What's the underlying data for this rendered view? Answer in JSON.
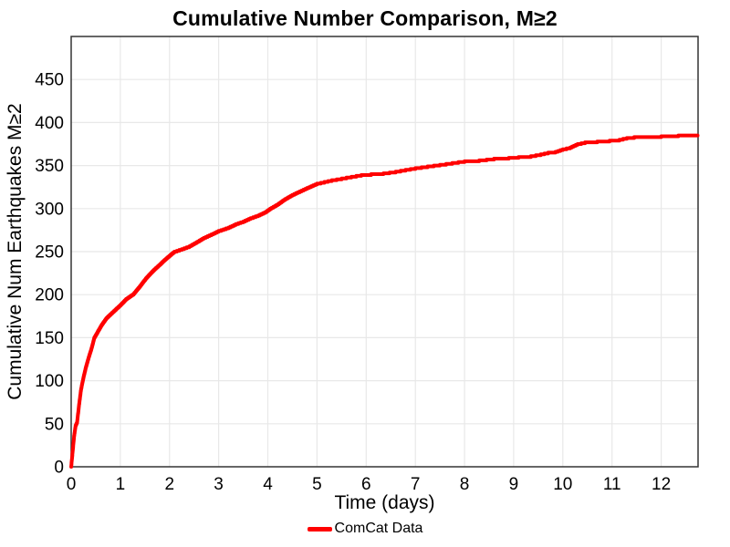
{
  "title": "Cumulative Number Comparison, M≥2",
  "legend": {
    "position": "bottom-center",
    "items": [
      {
        "label": "ComCat Data",
        "color": "#FF0000",
        "marker": "line"
      }
    ]
  },
  "colors": {
    "line": "#FF0000",
    "grid": "#E8E8E8",
    "panel_border": "#333333",
    "background": "#FFFFFF",
    "text": "#000000"
  },
  "chart_data": {
    "type": "line",
    "title": "Cumulative Number Comparison, M≥2",
    "xlabel": "Time (days)",
    "ylabel": "Cumulative Num Earthquakes M≥2",
    "xlim": [
      0,
      12.75
    ],
    "ylim": [
      0,
      500
    ],
    "x_ticks": [
      0,
      1,
      2,
      3,
      4,
      5,
      6,
      7,
      8,
      9,
      10,
      11,
      12
    ],
    "y_ticks": [
      0,
      50,
      100,
      150,
      200,
      250,
      300,
      350,
      400,
      450
    ],
    "grid": true,
    "line_style": "cumulative-step",
    "line_width": 4,
    "series": [
      {
        "name": "ComCat Data",
        "color": "#FF0000",
        "points": [
          [
            0,
            0
          ],
          [
            0.03,
            18
          ],
          [
            0.06,
            36
          ],
          [
            0.09,
            48
          ],
          [
            0.12,
            52
          ],
          [
            0.16,
            72
          ],
          [
            0.2,
            90
          ],
          [
            0.25,
            104
          ],
          [
            0.3,
            116
          ],
          [
            0.35,
            126
          ],
          [
            0.42,
            139
          ],
          [
            0.47,
            150
          ],
          [
            0.55,
            158
          ],
          [
            0.62,
            165
          ],
          [
            0.72,
            173
          ],
          [
            0.85,
            180
          ],
          [
            1.0,
            188
          ],
          [
            1.12,
            195
          ],
          [
            1.27,
            201
          ],
          [
            1.4,
            210
          ],
          [
            1.52,
            219
          ],
          [
            1.65,
            227
          ],
          [
            1.8,
            235
          ],
          [
            1.95,
            243
          ],
          [
            2.1,
            250
          ],
          [
            2.25,
            253
          ],
          [
            2.4,
            256
          ],
          [
            2.55,
            261
          ],
          [
            2.7,
            266
          ],
          [
            2.85,
            270
          ],
          [
            3.0,
            274
          ],
          [
            3.2,
            278
          ],
          [
            3.35,
            282
          ],
          [
            3.5,
            285
          ],
          [
            3.65,
            289
          ],
          [
            3.8,
            292
          ],
          [
            3.95,
            296
          ],
          [
            4.05,
            300
          ],
          [
            4.2,
            305
          ],
          [
            4.35,
            311
          ],
          [
            4.5,
            316
          ],
          [
            4.65,
            320
          ],
          [
            4.8,
            324
          ],
          [
            5.0,
            329
          ],
          [
            5.15,
            331
          ],
          [
            5.3,
            333
          ],
          [
            5.5,
            335
          ],
          [
            5.7,
            337
          ],
          [
            5.9,
            339
          ],
          [
            6.1,
            340
          ],
          [
            6.35,
            341
          ],
          [
            6.6,
            343
          ],
          [
            6.8,
            345
          ],
          [
            7.0,
            347
          ],
          [
            7.25,
            349
          ],
          [
            7.5,
            351
          ],
          [
            7.75,
            353
          ],
          [
            8.0,
            355
          ],
          [
            8.3,
            356
          ],
          [
            8.6,
            358
          ],
          [
            8.9,
            359
          ],
          [
            9.1,
            360
          ],
          [
            9.35,
            361
          ],
          [
            9.55,
            363
          ],
          [
            9.7,
            365
          ],
          [
            9.85,
            366
          ],
          [
            10.0,
            369
          ],
          [
            10.15,
            371
          ],
          [
            10.3,
            375
          ],
          [
            10.45,
            377
          ],
          [
            10.7,
            378
          ],
          [
            10.95,
            379
          ],
          [
            11.15,
            380
          ],
          [
            11.3,
            382
          ],
          [
            11.45,
            383
          ],
          [
            11.75,
            383
          ],
          [
            12.0,
            384
          ],
          [
            12.35,
            385
          ],
          [
            12.74,
            385
          ]
        ]
      }
    ]
  }
}
